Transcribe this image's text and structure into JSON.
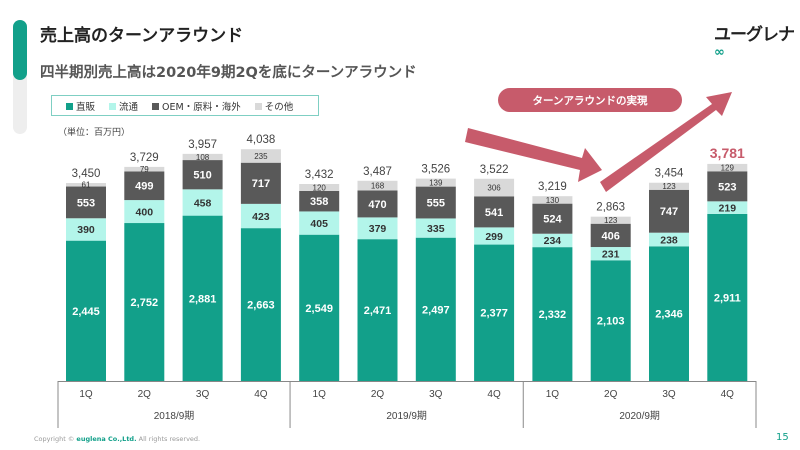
{
  "header": {
    "title": "売上高のターンアラウンド",
    "subtitle": "四半期別売上高は2020年9期2Qを底にターンアラウンド",
    "logo": "ユーグレナ"
  },
  "callout": "ターンアラウンドの実現",
  "footer": {
    "pre": "Copyright © ",
    "brand": "euglena Co.,Ltd.",
    "post": " All rights reserved.",
    "page": "15"
  },
  "colors": {
    "direct": "#12a08a",
    "distribution": "#b3f5ea",
    "oem": "#595959",
    "other": "#d9d9d9",
    "highlight": "#c75b6b"
  },
  "chart_data": {
    "type": "bar",
    "stacked": true,
    "unit_label": "（単位：百万円）",
    "legend": [
      "直販",
      "流通",
      "OEM・原料・海外",
      "その他"
    ],
    "legend_placement": "top-left",
    "categories": [
      "1Q",
      "2Q",
      "3Q",
      "4Q",
      "1Q",
      "2Q",
      "3Q",
      "4Q",
      "1Q",
      "2Q",
      "3Q",
      "4Q"
    ],
    "groups": [
      {
        "label": "2018/9期",
        "span": 4
      },
      {
        "label": "2019/9期",
        "span": 4
      },
      {
        "label": "2020/9期",
        "span": 4
      }
    ],
    "series": [
      {
        "name": "直販",
        "values": [
          2445,
          2752,
          2881,
          2663,
          2549,
          2471,
          2497,
          2377,
          2332,
          2103,
          2346,
          2911
        ]
      },
      {
        "name": "流通",
        "values": [
          390,
          400,
          458,
          423,
          405,
          379,
          335,
          299,
          234,
          231,
          238,
          219
        ]
      },
      {
        "name": "OEM・原料・海外",
        "values": [
          553,
          499,
          510,
          717,
          358,
          470,
          555,
          541,
          524,
          406,
          747,
          523
        ]
      },
      {
        "name": "その他",
        "values": [
          61,
          79,
          108,
          235,
          120,
          168,
          139,
          306,
          130,
          123,
          123,
          129
        ]
      }
    ],
    "totals": [
      "3,450",
      "3,729",
      "3,957",
      "4,038",
      "3,432",
      "3,487",
      "3,526",
      "3,522",
      "3,219",
      "2,863",
      "3,454",
      "3,781"
    ],
    "highlight_index": 11,
    "ylim": [
      0,
      4500
    ],
    "grid": false
  }
}
